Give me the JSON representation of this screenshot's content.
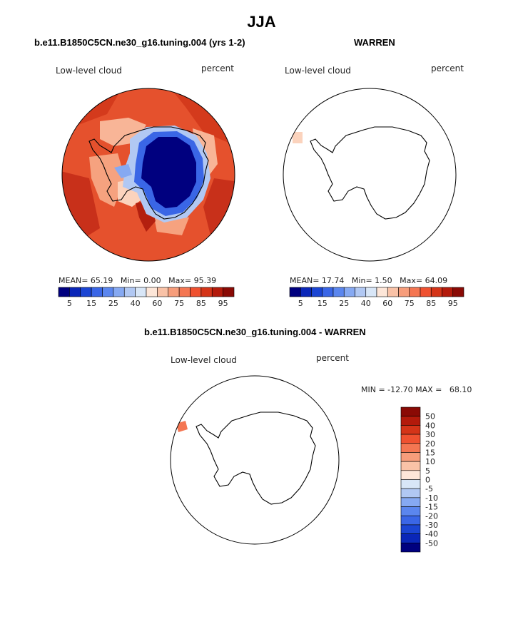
{
  "page_title": "JJA",
  "chart_data": [
    {
      "type": "heatmap",
      "title": "b.e11.B1850C5CN.ne30_g16.tuning.004 (yrs 1-2)",
      "left_label": "Low-level cloud",
      "right_label": "percent",
      "mean_label": "MEAN=",
      "mean": "65.19",
      "min_label": "Min=",
      "min": "0.00",
      "max_label": "Max=",
      "max": "95.39",
      "colorbar_labels": [
        "5",
        "15",
        "25",
        "40",
        "60",
        "75",
        "85",
        "95"
      ],
      "colors": [
        "#00007f",
        "#0a26b8",
        "#1b45d3",
        "#3a66e6",
        "#5b86ee",
        "#86a9f2",
        "#b1c8f3",
        "#d8e6f7",
        "#fde6d8",
        "#f9c2a7",
        "#f79d7b",
        "#f47652",
        "#ef5130",
        "#d43418",
        "#b31a0b",
        "#8a0a05"
      ]
    },
    {
      "type": "heatmap",
      "title": "WARREN",
      "left_label": "Low-level cloud",
      "right_label": "percent",
      "mean_label": "MEAN=",
      "mean": "17.74",
      "min_label": "Min=",
      "min": "1.50",
      "max_label": "Max=",
      "max": "64.09",
      "colorbar_labels": [
        "5",
        "15",
        "25",
        "40",
        "60",
        "75",
        "85",
        "95"
      ]
    },
    {
      "type": "heatmap",
      "title": "b.e11.B1850C5CN.ne30_g16.tuning.004 - WARREN",
      "left_label": "Low-level cloud",
      "right_label": "percent",
      "min_max_text": "MIN = -12.70 MAX =   68.10",
      "colorbar_labels": [
        "50",
        "40",
        "30",
        "20",
        "15",
        "10",
        "5",
        "0",
        "-5",
        "-10",
        "-15",
        "-20",
        "-30",
        "-40",
        "-50"
      ],
      "colors": [
        "#8a0a05",
        "#b31a0b",
        "#d43418",
        "#ef5130",
        "#f47652",
        "#f79d7b",
        "#f9c2a7",
        "#fde6d8",
        "#d8e6f7",
        "#b1c8f3",
        "#86a9f2",
        "#5b86ee",
        "#3a66e6",
        "#1b45d3",
        "#0a26b8",
        "#00007f"
      ]
    }
  ]
}
